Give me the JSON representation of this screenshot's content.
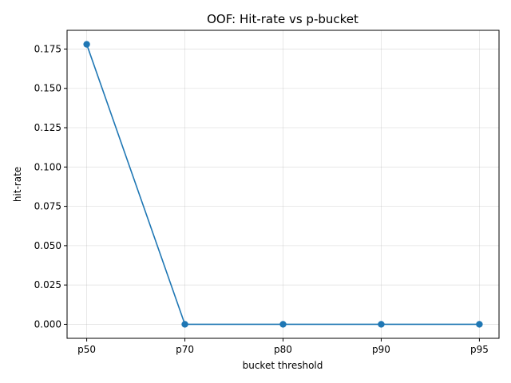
{
  "chart_data": {
    "type": "line",
    "title": "OOF: Hit-rate vs p-bucket",
    "xlabel": "bucket threshold",
    "ylabel": "hit-rate",
    "categories": [
      "p50",
      "p70",
      "p80",
      "p90",
      "p95"
    ],
    "series": [
      {
        "values": [
          0.178,
          0.0,
          0.0,
          0.0,
          0.0
        ],
        "color": "#1f77b4",
        "marker": "circle"
      }
    ],
    "ylim": [
      -0.0089,
      0.1869
    ],
    "yticks": [
      0.0,
      0.025,
      0.05,
      0.075,
      0.1,
      0.125,
      0.15,
      0.175
    ],
    "ytick_labels": [
      "0.000",
      "0.025",
      "0.050",
      "0.075",
      "0.100",
      "0.125",
      "0.150",
      "0.175"
    ],
    "grid": true
  }
}
